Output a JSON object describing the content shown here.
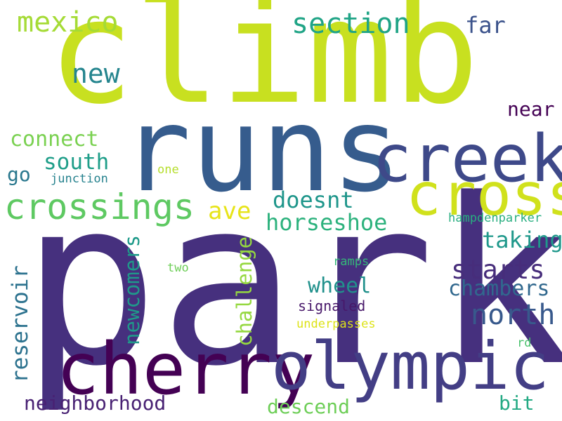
{
  "words": [
    {
      "text": "climb",
      "color": "#c8e020"
    },
    {
      "text": "park",
      "color": "#46307e"
    },
    {
      "text": "runs",
      "color": "#365c8d"
    },
    {
      "text": "creek",
      "color": "#3e4989"
    },
    {
      "text": "cross",
      "color": "#d0e11c"
    },
    {
      "text": "cherry",
      "color": "#440154"
    },
    {
      "text": "olympic",
      "color": "#433e85"
    },
    {
      "text": "crossings",
      "color": "#5ec962"
    },
    {
      "text": "mexico",
      "color": "#a5db36"
    },
    {
      "text": "section",
      "color": "#20a486"
    },
    {
      "text": "far",
      "color": "#3b528b"
    },
    {
      "text": "new",
      "color": "#25858e"
    },
    {
      "text": "near",
      "color": "#440154"
    },
    {
      "text": "connect",
      "color": "#7ad151"
    },
    {
      "text": "south",
      "color": "#1f9e89"
    },
    {
      "text": "go",
      "color": "#2a788e"
    },
    {
      "text": "one",
      "color": "#b5de2b"
    },
    {
      "text": "junction",
      "color": "#26828e"
    },
    {
      "text": "ave",
      "color": "#e7e419"
    },
    {
      "text": "doesnt",
      "color": "#1f968b"
    },
    {
      "text": "horseshoe",
      "color": "#2db27d"
    },
    {
      "text": "hampdenparker",
      "color": "#28ae80"
    },
    {
      "text": "taking",
      "color": "#1f988b"
    },
    {
      "text": "starts",
      "color": "#472d7b"
    },
    {
      "text": "ramps",
      "color": "#35b779"
    },
    {
      "text": "two",
      "color": "#6ece58"
    },
    {
      "text": "wheel",
      "color": "#21918c"
    },
    {
      "text": "chambers",
      "color": "#31688e"
    },
    {
      "text": "north",
      "color": "#38598c"
    },
    {
      "text": "signaled",
      "color": "#48186a"
    },
    {
      "text": "underpasses",
      "color": "#dde318"
    },
    {
      "text": "newcomers",
      "color": "#1f9a8a"
    },
    {
      "text": "challenge",
      "color": "#95d840"
    },
    {
      "text": "reservoir",
      "color": "#2c728e"
    },
    {
      "text": "rd",
      "color": "#4ac16d"
    },
    {
      "text": "neighborhood",
      "color": "#482173"
    },
    {
      "text": "descend",
      "color": "#6ece58"
    },
    {
      "text": "bit",
      "color": "#23a983"
    }
  ]
}
